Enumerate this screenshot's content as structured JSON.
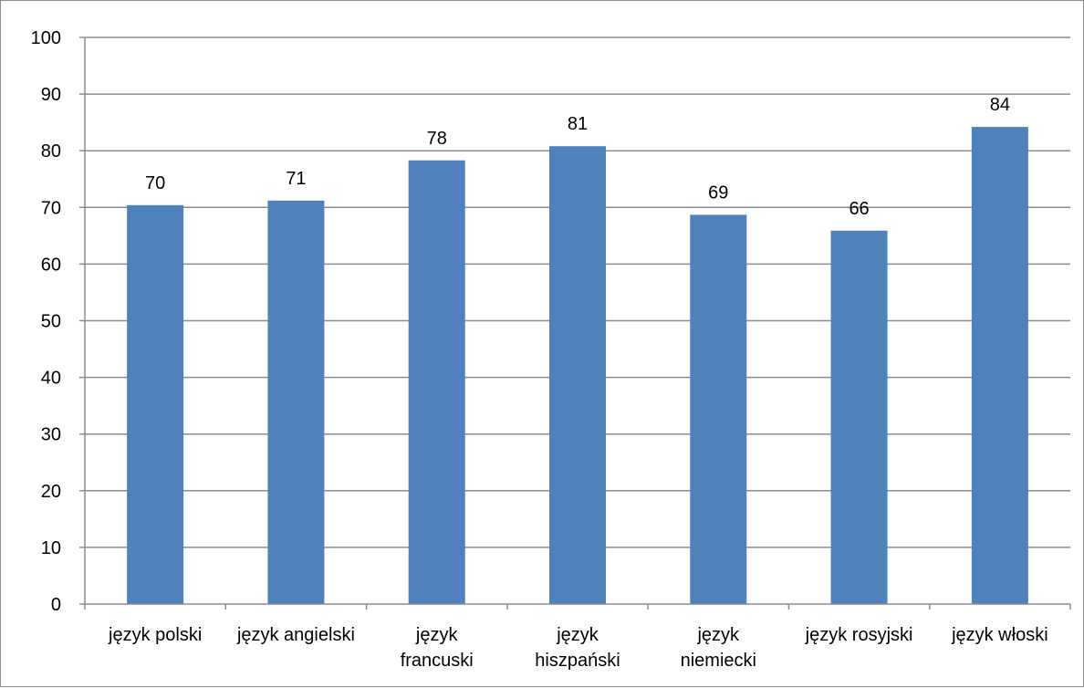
{
  "chart_data": {
    "type": "bar",
    "title": "",
    "xlabel": "",
    "ylabel": "",
    "categories": [
      [
        "język polski"
      ],
      [
        "język angielski"
      ],
      [
        "język",
        "francuski"
      ],
      [
        "język",
        "hiszpański"
      ],
      [
        "język",
        "niemiecki"
      ],
      [
        "język rosyjski"
      ],
      [
        "język włoski"
      ]
    ],
    "values": [
      70.4,
      71.2,
      78.3,
      80.8,
      68.7,
      65.9,
      84.2
    ],
    "data_labels": [
      "70",
      "71",
      "78",
      "81",
      "69",
      "66",
      "84"
    ],
    "ylim": [
      0,
      100
    ],
    "yticks": [
      0,
      10,
      20,
      30,
      40,
      50,
      60,
      70,
      80,
      90,
      100
    ],
    "grid": true,
    "legend": "none",
    "bar_color": "#4f81bd"
  }
}
